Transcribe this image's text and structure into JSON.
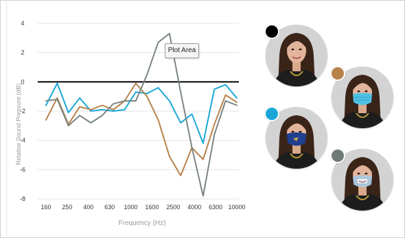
{
  "chart_data": {
    "type": "line",
    "xlabel": "Frequency (Hz)",
    "ylabel": "Relative Sound Pressure (dB)",
    "ylim": [
      -8,
      4
    ],
    "yticks": [
      4,
      2,
      0,
      -2,
      -4,
      -6,
      -8
    ],
    "grid": true,
    "x_tick_labels": [
      "160",
      "250",
      "400",
      "630",
      "1000",
      "1600",
      "2500",
      "4000",
      "6300",
      "10000"
    ],
    "baseline": {
      "y": 0,
      "color": "#000000"
    },
    "series": [
      {
        "key": "blue",
        "color": "#1aa7d8",
        "values": [
          -1.6,
          -0.1,
          -2.1,
          -1.1,
          -2.0,
          -1.9,
          -2.0,
          -1.9,
          -0.7,
          -0.8,
          -0.4,
          -1.3,
          -2.8,
          -2.2,
          -4.2,
          -0.5,
          -0.2,
          -1.1
        ]
      },
      {
        "key": "brown",
        "color": "#b8824b",
        "values": [
          -2.6,
          -1.1,
          -2.9,
          -1.7,
          -1.9,
          -1.6,
          -1.9,
          -1.3,
          -0.1,
          -1.0,
          -2.6,
          -5.1,
          -6.4,
          -4.5,
          -5.3,
          -2.9,
          -0.9,
          -1.4
        ]
      },
      {
        "key": "gray",
        "color": "#7a8581",
        "values": [
          -1.3,
          -1.2,
          -3.0,
          -2.3,
          -2.8,
          -2.3,
          -1.5,
          -1.3,
          -1.3,
          0.5,
          2.7,
          3.3,
          -0.7,
          -4.5,
          -7.8,
          -3.6,
          -1.3,
          -1.6
        ]
      }
    ]
  },
  "tooltip": {
    "text": "Plot Area"
  },
  "legend_photos": [
    {
      "key": "no-mask",
      "dot_color": "#000000",
      "mask": "none"
    },
    {
      "key": "surgical-mask",
      "dot_color": "#b8824b",
      "mask": "surgical"
    },
    {
      "key": "cloth-mask",
      "dot_color": "#1aa7d8",
      "mask": "cloth"
    },
    {
      "key": "clear-window-mask",
      "dot_color": "#6f7a76",
      "mask": "clear"
    }
  ]
}
